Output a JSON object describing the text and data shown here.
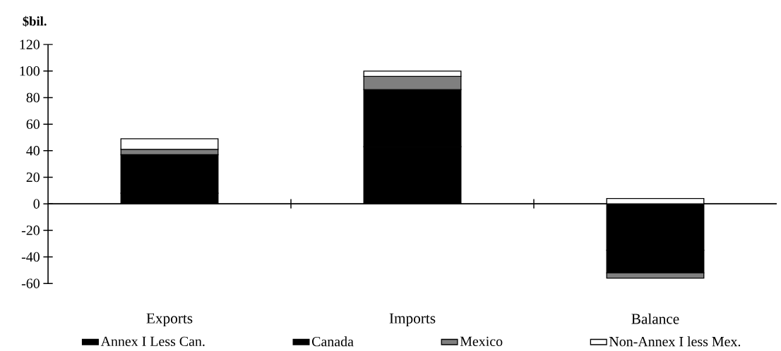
{
  "chart_data": {
    "type": "bar",
    "stacked": true,
    "ylabel": "$bil.",
    "categories": [
      "Exports",
      "Imports",
      "Balance"
    ],
    "series": [
      {
        "name": "Annex I Less Can.",
        "color": "#000000",
        "values": [
          8,
          43,
          -35
        ]
      },
      {
        "name": "Canada",
        "color": "#000000",
        "values": [
          29,
          43,
          -17
        ]
      },
      {
        "name": "Mexico",
        "color": "#7f7f7f",
        "values": [
          4,
          10,
          -4
        ]
      },
      {
        "name": "Non-Annex I less Mex.",
        "color": "#ffffff",
        "values": [
          8,
          4,
          4
        ]
      }
    ],
    "ylim": [
      -60,
      120
    ],
    "yticks": [
      -60,
      -40,
      -20,
      0,
      20,
      40,
      60,
      80,
      100,
      120
    ],
    "legend": "bottom"
  }
}
